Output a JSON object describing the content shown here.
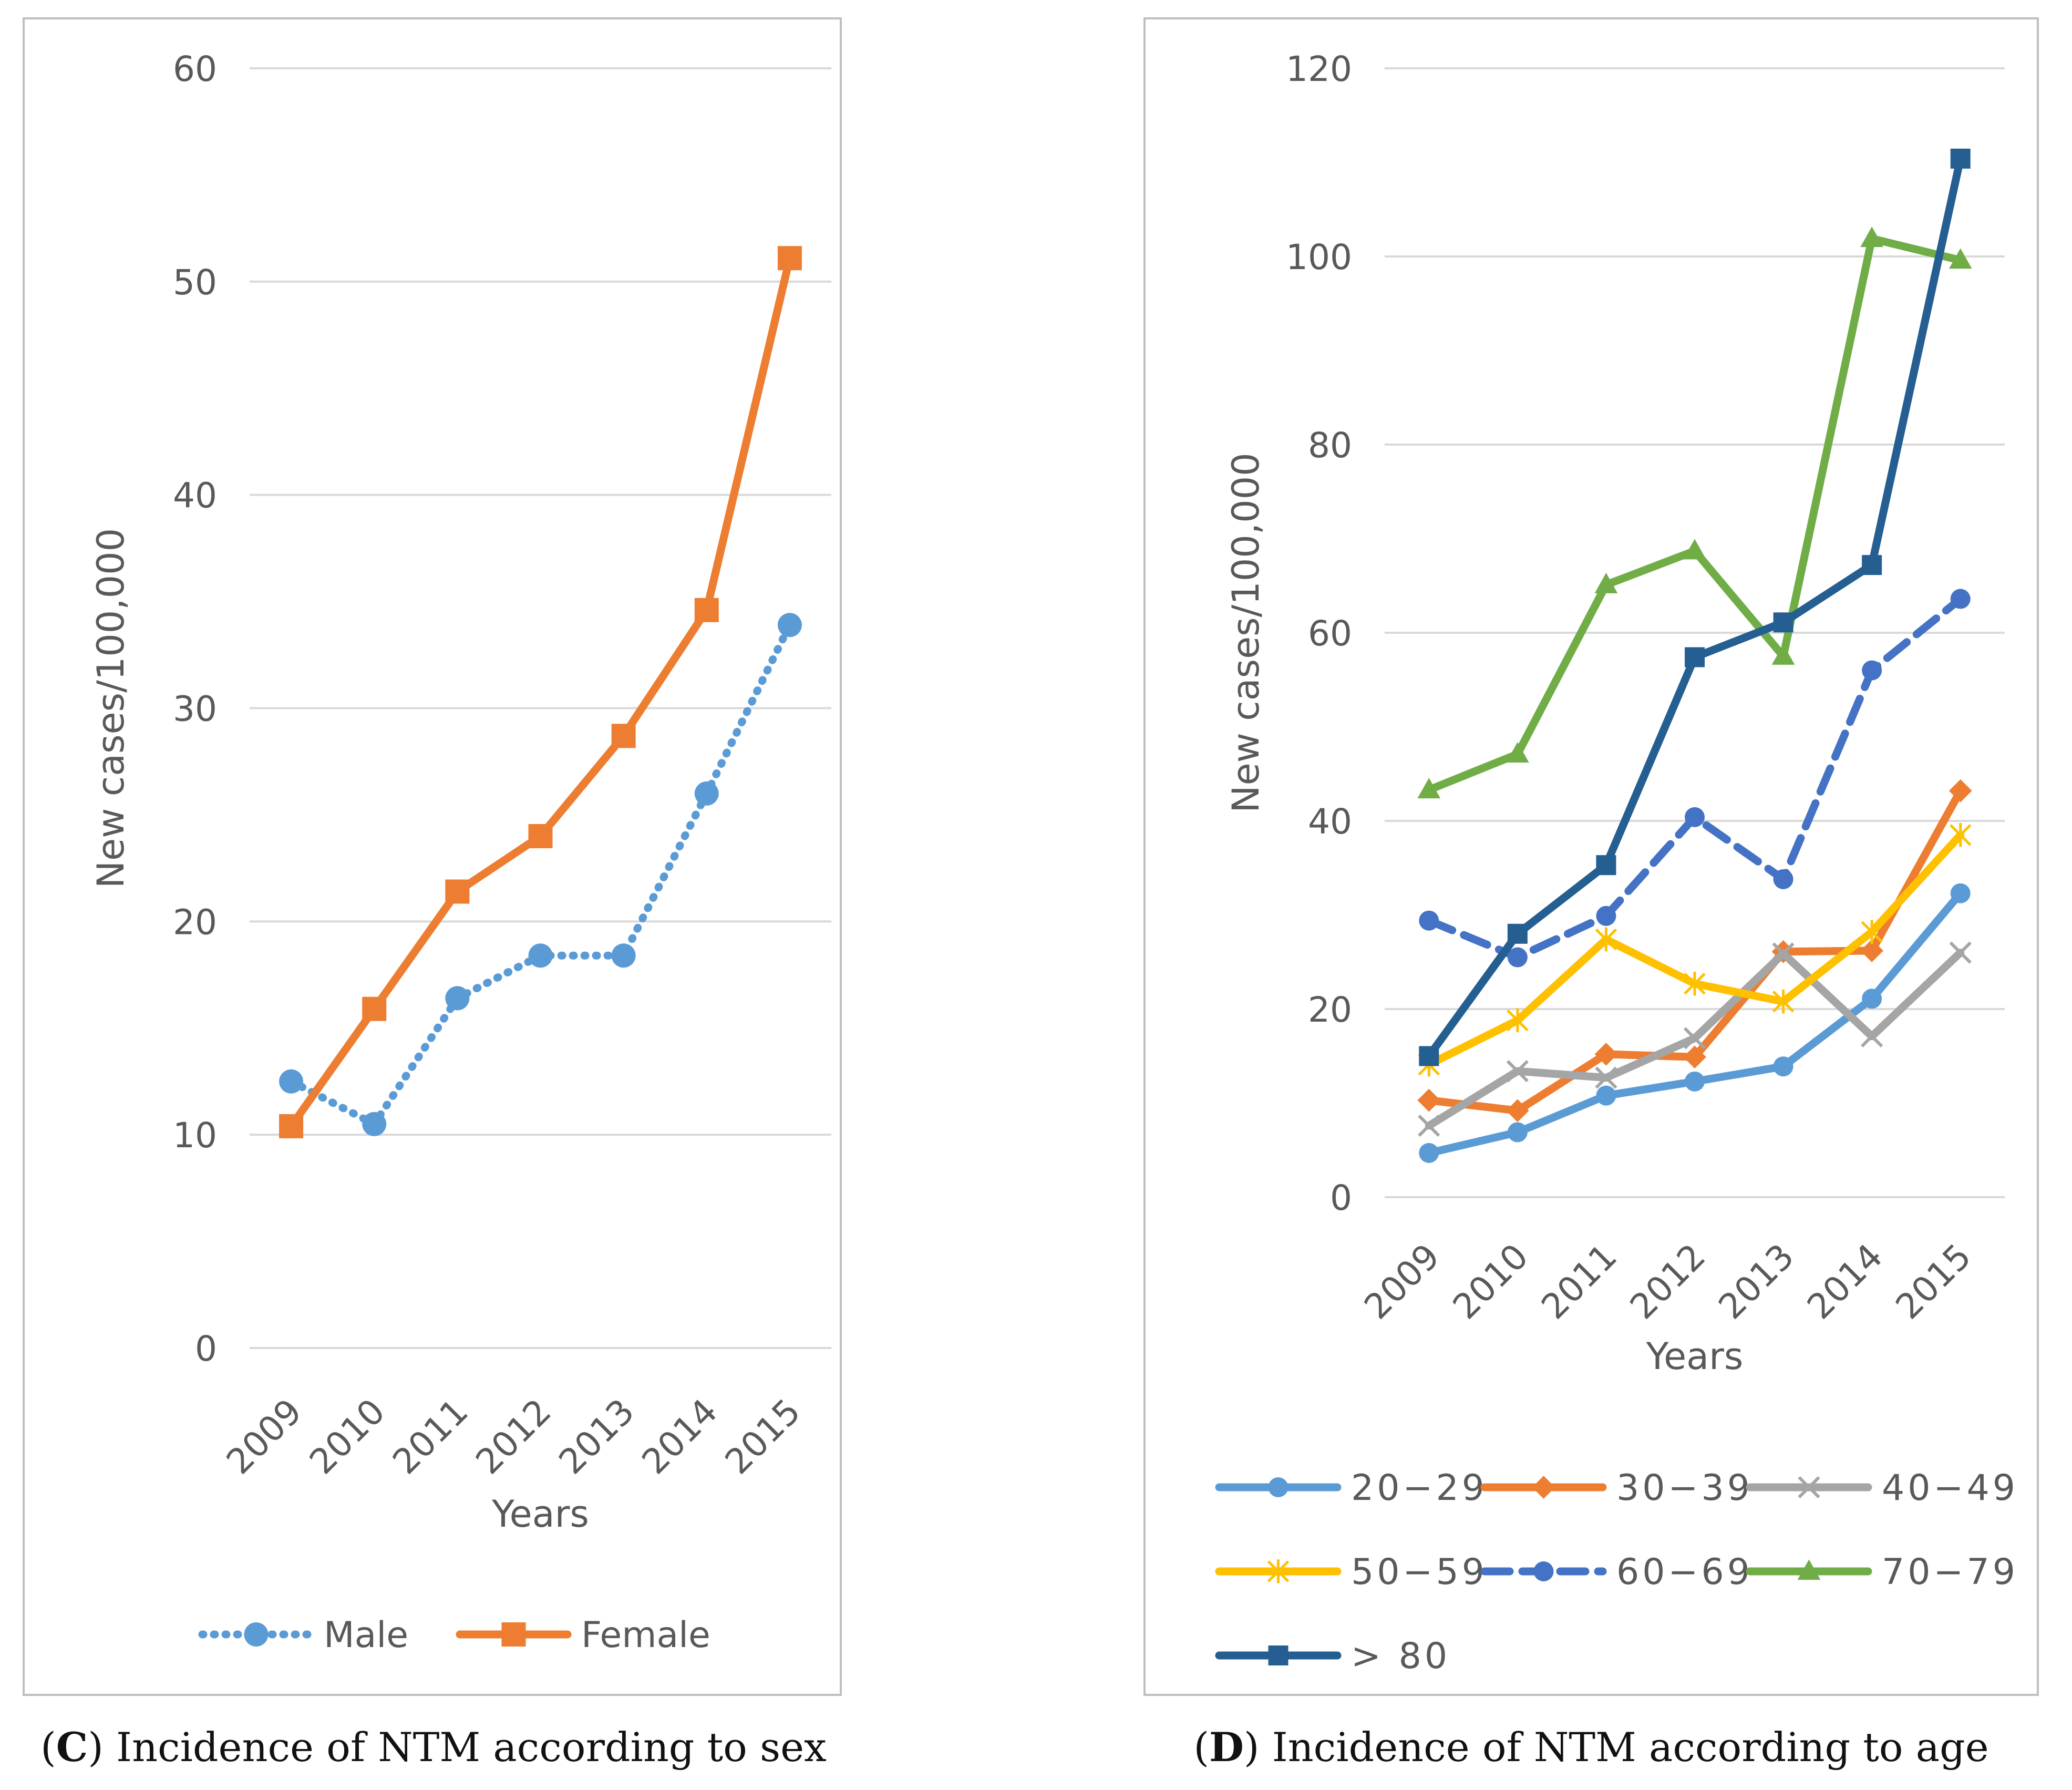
{
  "colors": {
    "male": "#5B9BD5",
    "female": "#ED7D31",
    "age_20_29": "#5B9BD5",
    "age_30_39": "#ED7D31",
    "age_40_49": "#A5A5A5",
    "age_50_59": "#FFC000",
    "age_60_69": "#4472C4",
    "age_70_79": "#70AD47",
    "age_80": "#255E91",
    "grid": "#D9D9D9",
    "axis_text": "#595959",
    "frame": "#BFBFBF"
  },
  "chart_data": [
    {
      "type": "line",
      "x": [
        "2009",
        "2010",
        "2011",
        "2012",
        "2013",
        "2014",
        "2015"
      ],
      "xlabel": "Years",
      "ylabel": "New cases/100,000",
      "ylim": [
        0,
        60
      ],
      "yticks": [
        0,
        10,
        20,
        30,
        40,
        50,
        60
      ],
      "grid": true,
      "legend_position": "bottom",
      "series": [
        {
          "name": "Male",
          "values": [
            12.5,
            10.5,
            16.4,
            18.4,
            18.4,
            26.0,
            33.9
          ],
          "line_style": "dotted",
          "marker": "circle",
          "color_key": "male"
        },
        {
          "name": "Female",
          "values": [
            10.4,
            15.9,
            21.4,
            24.0,
            28.7,
            34.6,
            51.1
          ],
          "line_style": "solid",
          "marker": "square",
          "color_key": "female"
        }
      ]
    },
    {
      "type": "line",
      "x": [
        "2009",
        "2010",
        "2011",
        "2012",
        "2013",
        "2014",
        "2015"
      ],
      "xlabel": "Years",
      "ylabel": "New cases/100,000",
      "ylim": [
        0,
        120
      ],
      "yticks": [
        0,
        20,
        40,
        60,
        80,
        100,
        120
      ],
      "grid": true,
      "legend_position": "bottom",
      "series": [
        {
          "name": "20−29",
          "values": [
            4.7,
            6.9,
            10.8,
            12.3,
            13.9,
            21.1,
            32.3
          ],
          "line_style": "solid",
          "marker": "circle",
          "color_key": "age_20_29"
        },
        {
          "name": "30−39",
          "values": [
            10.3,
            9.2,
            15.2,
            14.9,
            26.1,
            26.2,
            43.2
          ],
          "line_style": "solid",
          "marker": "diamond",
          "color_key": "age_30_39"
        },
        {
          "name": "40−49",
          "values": [
            7.6,
            13.4,
            12.7,
            16.9,
            25.9,
            17.1,
            26.0
          ],
          "line_style": "solid",
          "marker": "x",
          "color_key": "age_40_49"
        },
        {
          "name": "50−59",
          "values": [
            14.1,
            18.8,
            27.4,
            22.7,
            20.8,
            28.2,
            38.5
          ],
          "line_style": "solid",
          "marker": "star",
          "color_key": "age_50_59"
        },
        {
          "name": "60−69",
          "values": [
            29.4,
            25.5,
            29.9,
            40.4,
            33.8,
            56.0,
            63.6
          ],
          "line_style": "dashed",
          "marker": "circle",
          "color_key": "age_60_69"
        },
        {
          "name": "70−79",
          "values": [
            43.3,
            47.1,
            65.1,
            68.7,
            57.5,
            101.9,
            99.6
          ],
          "line_style": "solid",
          "marker": "triangle",
          "color_key": "age_70_79"
        },
        {
          "name": "> 80",
          "values": [
            15.0,
            28.0,
            35.3,
            57.4,
            61.1,
            67.2,
            110.4
          ],
          "line_style": "solid",
          "marker": "square",
          "color_key": "age_80"
        }
      ]
    }
  ],
  "captions": {
    "c": {
      "letter": "C",
      "text": "Incidence of NTM according to sex"
    },
    "d": {
      "letter": "D",
      "text": "Incidence of NTM according to age"
    }
  }
}
